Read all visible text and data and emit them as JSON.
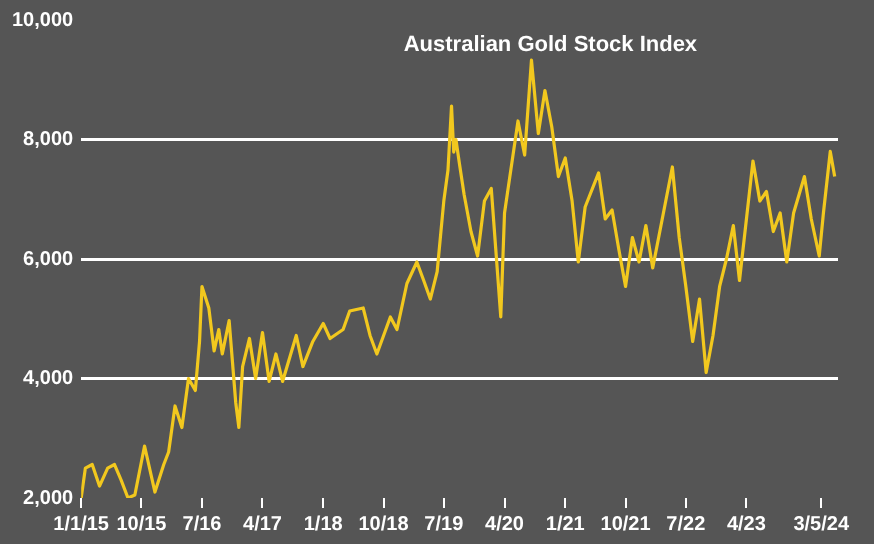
{
  "chart_data": {
    "type": "line",
    "title": "Australian Gold Stock Index",
    "x": [
      "2015-01-01",
      "2015-01-20",
      "2015-02-20",
      "2015-03-25",
      "2015-05-01",
      "2015-06-01",
      "2015-07-01",
      "2015-08-01",
      "2015-09-01",
      "2015-10-15",
      "2015-12-01",
      "2016-01-10",
      "2016-02-01",
      "2016-03-01",
      "2016-04-01",
      "2016-05-01",
      "2016-06-01",
      "2016-06-20",
      "2016-07-01",
      "2016-08-01",
      "2016-08-25",
      "2016-09-15",
      "2016-10-01",
      "2016-11-01",
      "2016-12-01",
      "2016-12-15",
      "2017-01-01",
      "2017-02-01",
      "2017-03-01",
      "2017-04-01",
      "2017-05-01",
      "2017-06-01",
      "2017-07-01",
      "2017-09-01",
      "2017-10-01",
      "2017-11-15",
      "2018-01-01",
      "2018-02-01",
      "2018-04-01",
      "2018-05-01",
      "2018-07-01",
      "2018-08-01",
      "2018-09-01",
      "2018-11-01",
      "2018-12-01",
      "2019-01-15",
      "2019-03-01",
      "2019-04-01",
      "2019-05-01",
      "2019-06-01",
      "2019-07-01",
      "2019-07-20",
      "2019-08-05",
      "2019-08-15",
      "2019-08-25",
      "2019-09-10",
      "2019-10-01",
      "2019-11-01",
      "2019-12-01",
      "2020-01-01",
      "2020-02-01",
      "2020-03-15",
      "2020-04-01",
      "2020-06-01",
      "2020-07-01",
      "2020-08-01",
      "2020-09-01",
      "2020-10-01",
      "2020-11-01",
      "2020-12-01",
      "2021-01-01",
      "2021-02-01",
      "2021-03-01",
      "2021-04-01",
      "2021-06-01",
      "2021-07-01",
      "2021-08-01",
      "2021-09-01",
      "2021-10-01",
      "2021-11-01",
      "2021-12-01",
      "2022-01-01",
      "2022-02-01",
      "2022-04-01",
      "2022-05-01",
      "2022-06-01",
      "2022-07-01",
      "2022-08-01",
      "2022-09-01",
      "2022-10-01",
      "2022-11-01",
      "2022-12-01",
      "2023-01-01",
      "2023-02-01",
      "2023-03-01",
      "2023-05-01",
      "2023-06-01",
      "2023-07-01",
      "2023-08-01",
      "2023-09-01",
      "2023-10-01",
      "2023-11-01",
      "2023-12-20",
      "2024-01-20",
      "2024-02-25",
      "2024-03-15",
      "2024-04-15",
      "2024-05-05"
    ],
    "series": [
      {
        "color": "#f2c81e",
        "values": [
          2000,
          2500,
          2560,
          2200,
          2500,
          2560,
          2300,
          2000,
          2050,
          2870,
          2100,
          2560,
          2770,
          3540,
          3180,
          4000,
          3800,
          4620,
          5540,
          5180,
          4460,
          4820,
          4410,
          4970,
          3590,
          3180,
          4200,
          4670,
          4000,
          4770,
          3950,
          4410,
          3950,
          4720,
          4200,
          4620,
          4920,
          4670,
          4820,
          5130,
          5180,
          4720,
          4410,
          5030,
          4820,
          5590,
          5950,
          5640,
          5330,
          5790,
          6970,
          7490,
          8560,
          7790,
          8000,
          7590,
          7080,
          6460,
          6050,
          6970,
          7180,
          5030,
          6770,
          8310,
          7740,
          9330,
          8100,
          8820,
          8210,
          7380,
          7690,
          6970,
          5950,
          6870,
          7440,
          6670,
          6820,
          6150,
          5540,
          6360,
          5950,
          6560,
          5850,
          6970,
          7540,
          6360,
          5540,
          4620,
          5330,
          4100,
          4720,
          5540,
          6000,
          6560,
          5640,
          7640,
          6970,
          7130,
          6460,
          6770,
          5950,
          6770,
          7380,
          6670,
          6050,
          6770,
          7800,
          7380
        ]
      }
    ],
    "xlim": [
      "2015-01-01",
      "2024-05-20"
    ],
    "xticks": [
      {
        "value": "2015-01-01",
        "label": "1/1/15"
      },
      {
        "value": "2015-10-01",
        "label": "10/15"
      },
      {
        "value": "2016-07-01",
        "label": "7/16"
      },
      {
        "value": "2017-04-01",
        "label": "4/17"
      },
      {
        "value": "2018-01-01",
        "label": "1/18"
      },
      {
        "value": "2018-10-01",
        "label": "10/18"
      },
      {
        "value": "2019-07-01",
        "label": "7/19"
      },
      {
        "value": "2020-04-01",
        "label": "4/20"
      },
      {
        "value": "2021-01-01",
        "label": "1/21"
      },
      {
        "value": "2021-10-01",
        "label": "10/21"
      },
      {
        "value": "2022-07-01",
        "label": "7/22"
      },
      {
        "value": "2023-04-01",
        "label": "4/23"
      },
      {
        "value": "2024-03-05",
        "label": "3/5/24"
      }
    ],
    "ylim": [
      2000,
      10000
    ],
    "yticks": [
      {
        "value": 2000,
        "label": "2,000"
      },
      {
        "value": 4000,
        "label": "4,000"
      },
      {
        "value": 6000,
        "label": "6,000"
      },
      {
        "value": 8000,
        "label": "8,000"
      },
      {
        "value": 10000,
        "label": "10,000"
      }
    ],
    "grid": "y",
    "legend": false,
    "marker": "none",
    "line_style": "solid"
  }
}
